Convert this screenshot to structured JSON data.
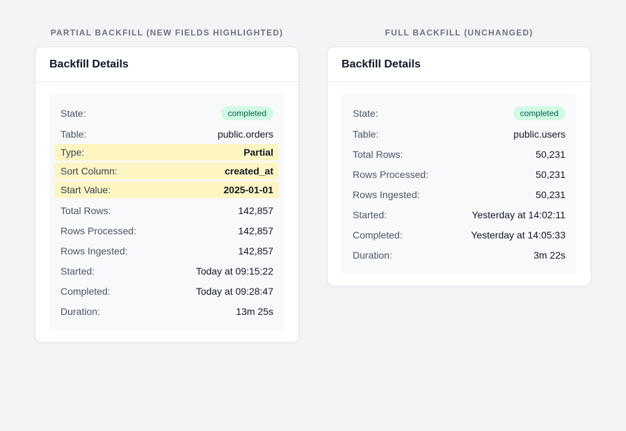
{
  "left": {
    "heading": "PARTIAL BACKFILL (NEW FIELDS HIGHLIGHTED)",
    "card_title": "Backfill Details",
    "state_label": "State:",
    "state_badge": "completed",
    "table_label": "Table:",
    "table_value": "public.orders",
    "type_label": "Type:",
    "type_value": "Partial",
    "sort_label": "Sort Column:",
    "sort_value": "created_at",
    "start_value_label": "Start Value:",
    "start_value_value": "2025-01-01",
    "total_label": "Total Rows:",
    "total_value": "142,857",
    "processed_label": "Rows Processed:",
    "processed_value": "142,857",
    "ingested_label": "Rows Ingested:",
    "ingested_value": "142,857",
    "started_label": "Started:",
    "started_value": "Today at 09:15:22",
    "completed_label": "Completed:",
    "completed_value": "Today at 09:28:47",
    "duration_label": "Duration:",
    "duration_value": "13m 25s"
  },
  "right": {
    "heading": "FULL BACKFILL (UNCHANGED)",
    "card_title": "Backfill Details",
    "state_label": "State:",
    "state_badge": "completed",
    "table_label": "Table:",
    "table_value": "public.users",
    "total_label": "Total Rows:",
    "total_value": "50,231",
    "processed_label": "Rows Processed:",
    "processed_value": "50,231",
    "ingested_label": "Rows Ingested:",
    "ingested_value": "50,231",
    "started_label": "Started:",
    "started_value": "Yesterday at 14:02:11",
    "completed_label": "Completed:",
    "completed_value": "Yesterday at 14:05:33",
    "duration_label": "Duration:",
    "duration_value": "3m 22s"
  },
  "colors": {
    "highlight": "#fdf6c3",
    "badge_bg": "#d1fae5",
    "badge_text": "#065f46"
  }
}
